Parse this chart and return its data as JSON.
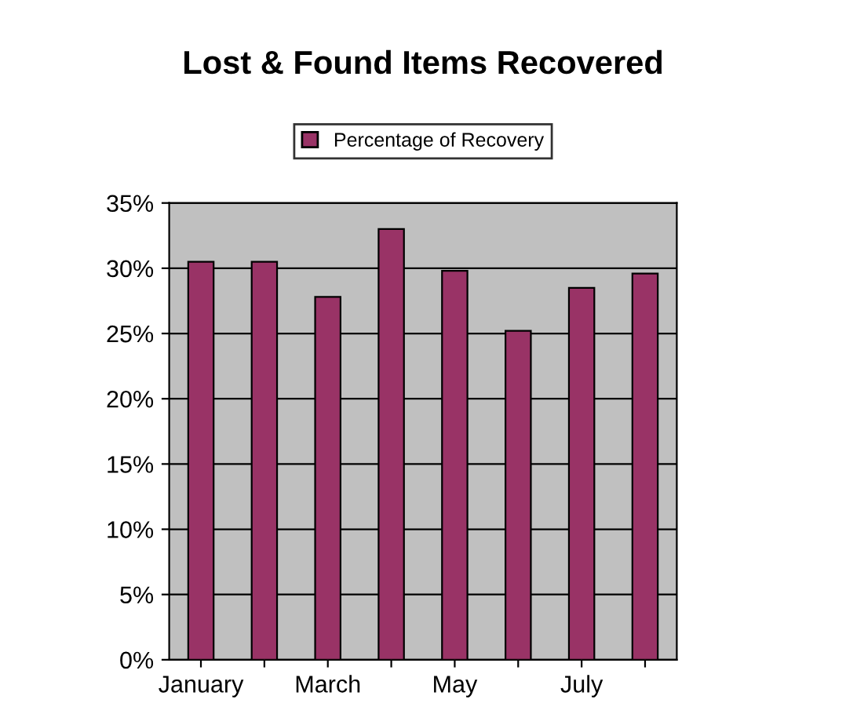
{
  "chart_data": {
    "type": "bar",
    "title": "Lost & Found Items Recovered",
    "categories": [
      "January",
      null,
      "March",
      null,
      "May",
      null,
      "July",
      null
    ],
    "series": [
      {
        "name": "Percentage of Recovery",
        "color": "#993366",
        "values": [
          30.5,
          30.5,
          27.8,
          33,
          29.8,
          25.2,
          28.5,
          29.6
        ]
      }
    ],
    "ylim": [
      0,
      35
    ],
    "yticks": [
      {
        "value": 0,
        "label": "0%"
      },
      {
        "value": 5,
        "label": "5%"
      },
      {
        "value": 10,
        "label": "10%"
      },
      {
        "value": 15,
        "label": "15%"
      },
      {
        "value": 20,
        "label": "20%"
      },
      {
        "value": 25,
        "label": "25%"
      },
      {
        "value": 30,
        "label": "30%"
      },
      {
        "value": 35,
        "label": "35%"
      }
    ],
    "grid": "y",
    "legend": "top"
  }
}
